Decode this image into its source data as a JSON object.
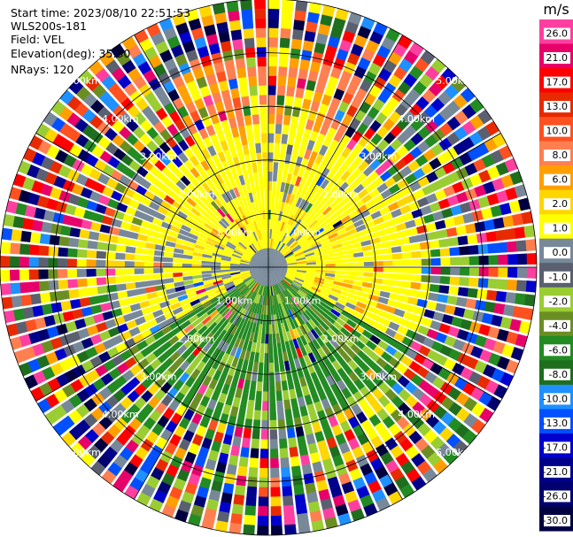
{
  "header": {
    "start_time": "Start time: 2023/08/10 22:51:53",
    "instrument": "WLS200s-181",
    "field": "Field: VEL",
    "elevation": "Elevation(deg): 35.30",
    "nrays": "NRays: 120"
  },
  "chart_data": {
    "type": "heatmap",
    "projection": "polar-ppi",
    "field": "VEL",
    "units": "m/s",
    "nrays": 120,
    "max_range_km": 5.0,
    "range_rings_km": [
      1,
      2,
      3,
      4,
      5
    ],
    "ring_labels": [
      "1.00km",
      "2.00km",
      "3.00km",
      "4.00km",
      "5.00km"
    ],
    "colorbar": {
      "title": "m/s",
      "tick_labels": [
        "26.0",
        "21.0",
        "17.0",
        "13.0",
        "10.0",
        "8.0",
        "6.0",
        "2.0",
        "1.0",
        "0.0",
        "-1.0",
        "-2.0",
        "-4.0",
        "-6.0",
        "-8.0",
        "-10.0",
        "-13.0",
        "-17.0",
        "-21.0",
        "-26.0",
        "-30.0"
      ],
      "colors": [
        "#ff3fa0",
        "#e8006a",
        "#ff0000",
        "#e82a00",
        "#ff5020",
        "#ff7f50",
        "#ffa000",
        "#ffd700",
        "#ffff00",
        "#778899",
        "#5a6070",
        "#9acd32",
        "#6b8e23",
        "#228b22",
        "#1e6e1e",
        "#1e90ff",
        "#0050ff",
        "#0000cd",
        "#00008b",
        "#000070",
        "#000040"
      ]
    },
    "regions": [
      {
        "sector_deg": [
          300,
          60
        ],
        "range_km": [
          0.3,
          2.6
        ],
        "dominant": "1.0"
      },
      {
        "sector_deg": [
          60,
          120
        ],
        "range_km": [
          0.3,
          2.8
        ],
        "dominant": "1.0"
      },
      {
        "sector_deg": [
          240,
          300
        ],
        "range_km": [
          0.3,
          2.8
        ],
        "dominant": "0.0"
      },
      {
        "sector_deg": [
          120,
          240
        ],
        "range_km": [
          0.3,
          3.0
        ],
        "dominant": "-6.0"
      },
      {
        "sector_deg": [
          330,
          30
        ],
        "range_km": [
          2.6,
          3.9
        ],
        "dominant": "8.0"
      },
      {
        "sector_deg": [
          0,
          360
        ],
        "range_km": [
          3.9,
          5.0
        ],
        "dominant": "noise"
      }
    ]
  }
}
